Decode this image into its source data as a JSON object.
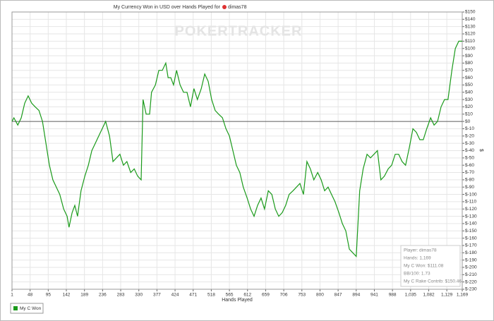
{
  "chart_data": {
    "type": "line",
    "title": "My Currency Won in USD over Hands Played for",
    "player": "dimas78",
    "watermark": "POKERTRACKER",
    "x_label": "Hands Played",
    "y_label": "$",
    "grid": true,
    "x": [
      1,
      6,
      16,
      25,
      34,
      43,
      52,
      61,
      71,
      80,
      89,
      98,
      107,
      116,
      125,
      135,
      144,
      149,
      157,
      164,
      171,
      180,
      190,
      199,
      208,
      217,
      226,
      235,
      244,
      254,
      263,
      272,
      281,
      290,
      299,
      309,
      318,
      327,
      336,
      341,
      349,
      358,
      363,
      373,
      382,
      391,
      400,
      406,
      413,
      420,
      428,
      437,
      446,
      455,
      464,
      473,
      482,
      492,
      501,
      510,
      519,
      528,
      537,
      547,
      556,
      565,
      574,
      583,
      592,
      601,
      611,
      620,
      629,
      638,
      647,
      656,
      666,
      675,
      684,
      693,
      702,
      711,
      720,
      730,
      739,
      748,
      757,
      766,
      775,
      784,
      794,
      803,
      812,
      821,
      830,
      839,
      849,
      858,
      867,
      876,
      885,
      894,
      903,
      912,
      922,
      931,
      940,
      949,
      958,
      967,
      977,
      986,
      995,
      1004,
      1013,
      1022,
      1032,
      1041,
      1050,
      1059,
      1068,
      1077,
      1087,
      1096,
      1105,
      1114,
      1123,
      1132,
      1142,
      1151,
      1160,
      1169
    ],
    "series": [
      {
        "name": "My C Won",
        "color": "#1a9a1a",
        "values": [
          0,
          5,
          -5,
          5,
          25,
          35,
          25,
          20,
          15,
          0,
          -30,
          -60,
          -80,
          -90,
          -100,
          -120,
          -130,
          -145,
          -125,
          -115,
          -130,
          -95,
          -75,
          -60,
          -40,
          -30,
          -20,
          -10,
          0,
          -20,
          -55,
          -50,
          -45,
          -60,
          -55,
          -70,
          -65,
          -75,
          -80,
          30,
          10,
          10,
          40,
          50,
          70,
          70,
          80,
          60,
          60,
          50,
          70,
          50,
          40,
          40,
          20,
          45,
          30,
          45,
          65,
          55,
          30,
          15,
          10,
          5,
          -10,
          -20,
          -40,
          -60,
          -70,
          -90,
          -105,
          -120,
          -130,
          -115,
          -105,
          -120,
          -95,
          -100,
          -120,
          -130,
          -125,
          -115,
          -100,
          -95,
          -90,
          -85,
          -100,
          -55,
          -65,
          -80,
          -70,
          -80,
          -95,
          -90,
          -100,
          -110,
          -125,
          -140,
          -150,
          -175,
          -180,
          -185,
          -95,
          -65,
          -45,
          -50,
          -45,
          -40,
          -80,
          -75,
          -65,
          -60,
          -45,
          -45,
          -55,
          -60,
          -35,
          -10,
          -15,
          -25,
          -25,
          -10,
          5,
          -5,
          0,
          20,
          30,
          30,
          70,
          100,
          110,
          110
        ]
      }
    ],
    "xlim": [
      1,
      1169
    ],
    "xticks": [
      1,
      48,
      95,
      142,
      189,
      236,
      283,
      330,
      377,
      424,
      471,
      518,
      565,
      612,
      659,
      706,
      753,
      800,
      847,
      894,
      941,
      988,
      {
        "value": 1035,
        "label": "1,035"
      },
      {
        "value": 1082,
        "label": "1,082"
      },
      {
        "value": 1129,
        "label": "1,129"
      },
      {
        "value": 1169,
        "label": "1,169"
      }
    ],
    "ylim": [
      -230,
      150
    ],
    "yticks": [
      {
        "value": 150,
        "label": "$150"
      },
      {
        "value": 140,
        "label": "$140"
      },
      {
        "value": 130,
        "label": "$130"
      },
      {
        "value": 120,
        "label": "$120"
      },
      {
        "value": 110,
        "label": "$110"
      },
      {
        "value": 100,
        "label": "$100"
      },
      {
        "value": 90,
        "label": "$90"
      },
      {
        "value": 80,
        "label": "$80"
      },
      {
        "value": 70,
        "label": "$70"
      },
      {
        "value": 60,
        "label": "$60"
      },
      {
        "value": 50,
        "label": "$50"
      },
      {
        "value": 40,
        "label": "$40"
      },
      {
        "value": 30,
        "label": "$30"
      },
      {
        "value": 20,
        "label": "$20"
      },
      {
        "value": 10,
        "label": "$10"
      },
      {
        "value": 0,
        "label": "$0"
      },
      {
        "value": -10,
        "label": "$-10"
      },
      {
        "value": -20,
        "label": "$-20"
      },
      {
        "value": -30,
        "label": "$-30"
      },
      {
        "value": -40,
        "label": "$-40"
      },
      {
        "value": -50,
        "label": "$-50"
      },
      {
        "value": -60,
        "label": "$-60"
      },
      {
        "value": -70,
        "label": "$-70"
      },
      {
        "value": -80,
        "label": "$-80"
      },
      {
        "value": -90,
        "label": "$-90"
      },
      {
        "value": -100,
        "label": "$-100"
      },
      {
        "value": -110,
        "label": "$-110"
      },
      {
        "value": -120,
        "label": "$-120"
      },
      {
        "value": -130,
        "label": "$-130"
      },
      {
        "value": -140,
        "label": "$-140"
      },
      {
        "value": -150,
        "label": "$-150"
      },
      {
        "value": -160,
        "label": "$-160"
      },
      {
        "value": -170,
        "label": "$-170"
      },
      {
        "value": -180,
        "label": "$-180"
      },
      {
        "value": -190,
        "label": "$-190"
      },
      {
        "value": -200,
        "label": "$-200"
      },
      {
        "value": -210,
        "label": "$-210"
      },
      {
        "value": -220,
        "label": "$-220"
      },
      {
        "value": -230,
        "label": "$-230"
      }
    ],
    "info": [
      "Player: dimas78",
      "Hands: 1,169",
      "My C Won: $111.08",
      "BB/100: 1.73",
      "My C Rake Contrib: $150.46"
    ]
  }
}
